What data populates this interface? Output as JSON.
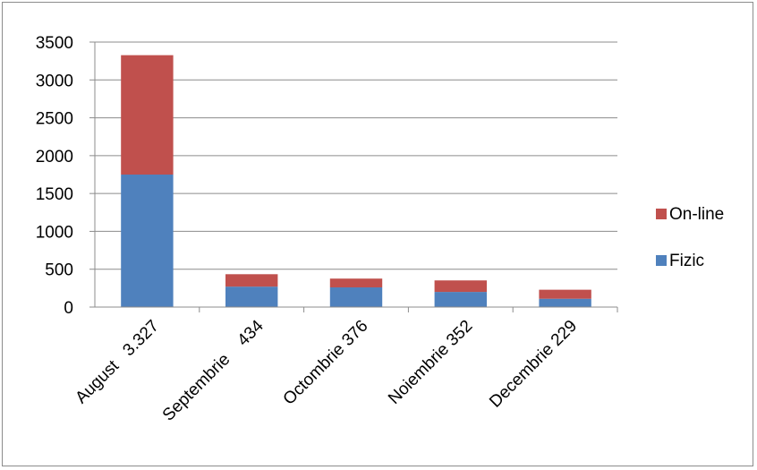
{
  "chart_data": {
    "type": "bar",
    "stacked": true,
    "categories": [
      "August   3.327",
      "Septembrie    434",
      "Octombrie 376",
      "Noiembrie 352",
      "Decembrie 229"
    ],
    "series": [
      {
        "name": "Fizic",
        "color": "#4f81bd",
        "values": [
          1750,
          270,
          260,
          200,
          110
        ]
      },
      {
        "name": "On-line",
        "color": "#c0504d",
        "values": [
          1577,
          164,
          116,
          152,
          119
        ]
      }
    ],
    "ylim": [
      0,
      3500
    ],
    "yticks": [
      "0",
      "500",
      "1000",
      "1500",
      "2000",
      "2500",
      "3000",
      "3500"
    ],
    "grid": true,
    "legend_position": "right",
    "title": "",
    "xlabel": "",
    "ylabel": ""
  }
}
